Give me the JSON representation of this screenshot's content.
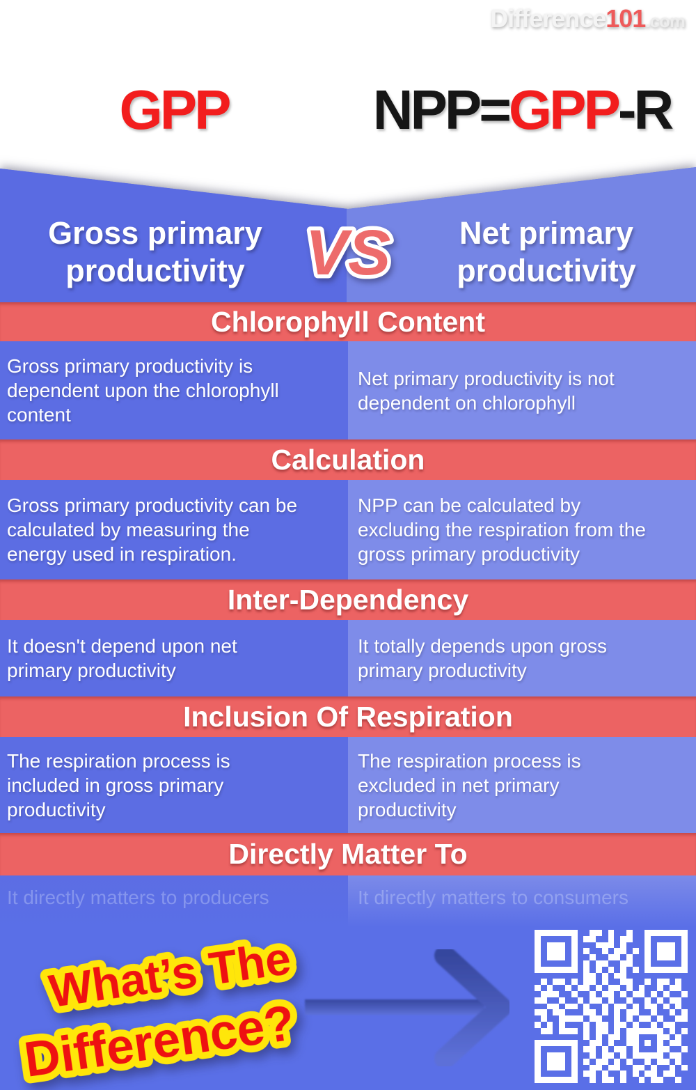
{
  "logo": {
    "segments": [
      {
        "text": "Difference",
        "color": "#f4f4f4",
        "small": false
      },
      {
        "text": "101",
        "color": "#ee5a5a",
        "small": false
      },
      {
        "text": ".com",
        "color": "#ededed",
        "small": true
      }
    ]
  },
  "formulas": {
    "left": {
      "segments": [
        {
          "text": "GPP",
          "color": "#f21d1d"
        }
      ]
    },
    "right": {
      "segments": [
        {
          "text": "NPP=",
          "color": "#161616"
        },
        {
          "text": "GPP",
          "color": "#f21d1d"
        },
        {
          "text": "-R",
          "color": "#161616"
        }
      ]
    }
  },
  "banner": {
    "left_title": "Gross primary productivity",
    "vs_label": "VS",
    "right_title": "Net primary productivity"
  },
  "sections": [
    {
      "header": "Chlorophyll Content",
      "left": "Gross primary productivity is dependent upon the chlorophyll content",
      "right": "Net primary productivity is not dependent on chlorophyll"
    },
    {
      "header": "Calculation",
      "left": "Gross primary productivity can be calculated by measuring the energy used in respiration.",
      "right": "NPP can be calculated by excluding the respiration from the gross primary productivity"
    },
    {
      "header": "Inter-Dependency",
      "left": "It doesn't depend upon net primary productivity",
      "right": "It totally depends upon gross primary productivity"
    },
    {
      "header": "Inclusion Of Respiration",
      "left": "The respiration process is included in gross primary productivity",
      "right": "The respiration process is excluded in net primary productivity"
    },
    {
      "header": "Directly Matter To",
      "left": "It directly matters to producers",
      "right": "It directly matters to consumers"
    }
  ],
  "footer": {
    "line1": "What’s The",
    "line2": "Difference?"
  },
  "colors": {
    "header_red": "#ec6363",
    "column_left_blue": "#5c6de3",
    "column_right_blue": "#7e8ce9",
    "base_blue": "#5a6fe7",
    "formula_red": "#f21d1d",
    "vs_fill": "#ed6b6b",
    "footer_text_red": "#ee1111",
    "footer_outline_yellow": "#ffe60a",
    "arrow_dark_blue": "#36479e"
  },
  "qr": {
    "matrix": [
      "1111111001101001001111111",
      "1000001011001011001000001",
      "1011101000111010001011101",
      "1011101010010110101011101",
      "1011101001001101001011101",
      "1000001010110011001000001",
      "1111111010101010101111111",
      "0000000011010110000000000",
      "0101101011010011001011010",
      "1010010110101101010010110",
      "0111001001011010110101001",
      "1100100101101001001010110",
      "0011011010010110101101010",
      "1101100011010101100100101",
      "0100111101100101011010011",
      "1010100010110110100101100",
      "0110111010110101111110101",
      "0000000010101101100011010",
      "1111111001101001101010110",
      "1000001011010110100011001",
      "1011101001011010111110110",
      "1011101010110101001011010",
      "1011101001101100110100101",
      "1000001011010010101101100",
      "1111111001011010010110010"
    ]
  }
}
